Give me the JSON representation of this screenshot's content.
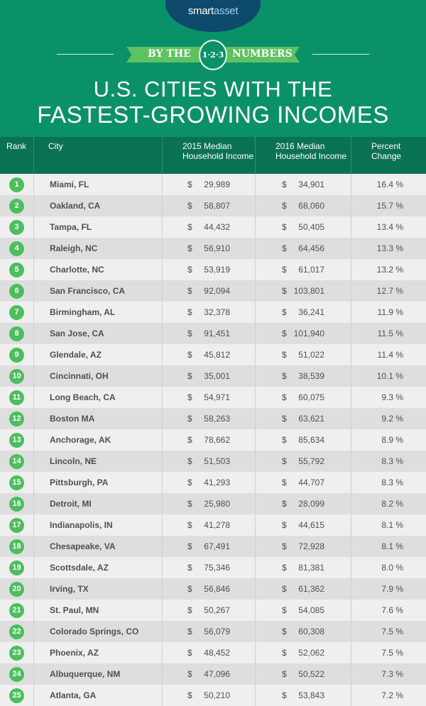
{
  "header": {
    "logo": "smartasset",
    "logo_a": "smart",
    "logo_b": "asset",
    "banner_left": "BY THE",
    "banner_circle": "1·2·3",
    "banner_right": "NUMBERS",
    "title_line1": "U.S. CITIES WITH THE",
    "title_line2": "FASTEST-GROWING INCOMES"
  },
  "colors": {
    "header_bg": "#0b9168",
    "table_header_bg": "#0a7252",
    "rank_badge": "#4dbd5e",
    "logo_bg": "#0d4a6b",
    "ribbon": "#5ec262"
  },
  "chart_data": {
    "type": "table",
    "title": "U.S. CITIES WITH THE FASTEST-GROWING INCOMES",
    "columns": [
      "Rank",
      "City",
      "2015 Median Household Income",
      "2016 Median Household Income",
      "Percent Change"
    ],
    "rows": [
      {
        "rank": "1",
        "city": "Miami, FL",
        "y2015": "29,989",
        "y2016": "34,901",
        "pct": "16.4 %"
      },
      {
        "rank": "2",
        "city": "Oakland, CA",
        "y2015": "58,807",
        "y2016": "68,060",
        "pct": "15.7 %"
      },
      {
        "rank": "3",
        "city": "Tampa, FL",
        "y2015": "44,432",
        "y2016": "50,405",
        "pct": "13.4 %"
      },
      {
        "rank": "4",
        "city": "Raleigh, NC",
        "y2015": "56,910",
        "y2016": "64,456",
        "pct": "13.3 %"
      },
      {
        "rank": "5",
        "city": "Charlotte, NC",
        "y2015": "53,919",
        "y2016": "61,017",
        "pct": "13.2 %"
      },
      {
        "rank": "6",
        "city": "San Francisco, CA",
        "y2015": "92,094",
        "y2016": "103,801",
        "pct": "12.7 %"
      },
      {
        "rank": "7",
        "city": "Birmingham, AL",
        "y2015": "32,378",
        "y2016": "36,241",
        "pct": "11.9 %"
      },
      {
        "rank": "8",
        "city": "San Jose, CA",
        "y2015": "91,451",
        "y2016": "101,940",
        "pct": "11.5 %"
      },
      {
        "rank": "9",
        "city": "Glendale, AZ",
        "y2015": "45,812",
        "y2016": "51,022",
        "pct": "11.4 %"
      },
      {
        "rank": "10",
        "city": "Cincinnati, OH",
        "y2015": "35,001",
        "y2016": "38,539",
        "pct": "10.1 %"
      },
      {
        "rank": "11",
        "city": "Long Beach, CA",
        "y2015": "54,971",
        "y2016": "60,075",
        "pct": "9.3 %"
      },
      {
        "rank": "12",
        "city": "Boston MA",
        "y2015": "58,263",
        "y2016": "63,621",
        "pct": "9.2 %"
      },
      {
        "rank": "13",
        "city": "Anchorage, AK",
        "y2015": "78,662",
        "y2016": "85,634",
        "pct": "8.9 %"
      },
      {
        "rank": "14",
        "city": "Lincoln, NE",
        "y2015": "51,503",
        "y2016": "55,792",
        "pct": "8.3 %"
      },
      {
        "rank": "15",
        "city": "Pittsburgh, PA",
        "y2015": "41,293",
        "y2016": "44,707",
        "pct": "8.3 %"
      },
      {
        "rank": "16",
        "city": "Detroit, MI",
        "y2015": "25,980",
        "y2016": "28,099",
        "pct": "8.2 %"
      },
      {
        "rank": "17",
        "city": "Indianapolis, IN",
        "y2015": "41,278",
        "y2016": "44,615",
        "pct": "8.1 %"
      },
      {
        "rank": "18",
        "city": "Chesapeake, VA",
        "y2015": "67,491",
        "y2016": "72,928",
        "pct": "8.1 %"
      },
      {
        "rank": "19",
        "city": "Scottsdale, AZ",
        "y2015": "75,346",
        "y2016": "81,381",
        "pct": "8.0 %"
      },
      {
        "rank": "20",
        "city": "Irving, TX",
        "y2015": "56,846",
        "y2016": "61,362",
        "pct": "7.9 %"
      },
      {
        "rank": "21",
        "city": "St. Paul, MN",
        "y2015": "50,267",
        "y2016": "54,085",
        "pct": "7.6 %"
      },
      {
        "rank": "22",
        "city": "Colorado Springs, CO",
        "y2015": "56,079",
        "y2016": "60,308",
        "pct": "7.5 %"
      },
      {
        "rank": "23",
        "city": "Phoenix, AZ",
        "y2015": "48,452",
        "y2016": "52,062",
        "pct": "7.5 %"
      },
      {
        "rank": "24",
        "city": "Albuquerque, NM",
        "y2015": "47,096",
        "y2016": "50,522",
        "pct": "7.3 %"
      },
      {
        "rank": "25",
        "city": "Atlanta, GA",
        "y2015": "50,210",
        "y2016": "53,843",
        "pct": "7.2 %"
      }
    ],
    "currency_symbol": "$"
  }
}
